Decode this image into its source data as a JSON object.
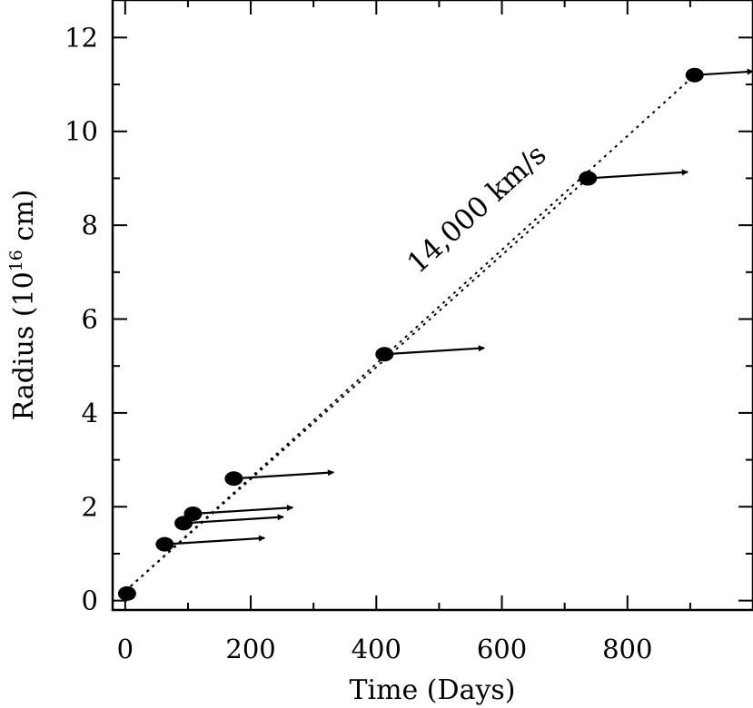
{
  "chart_data": {
    "type": "scatter",
    "title": "",
    "xlabel": "Time (Days)",
    "ylabel_base": "Radius (10",
    "ylabel_exponent": "16",
    "ylabel_unit": " cm)",
    "xlim": [
      -20,
      1000
    ],
    "ylim": [
      -0.2,
      12.8
    ],
    "xticks": [
      0,
      200,
      400,
      600,
      800
    ],
    "yticks": [
      0,
      2,
      4,
      6,
      8,
      10,
      12
    ],
    "grid": false,
    "legend": "none",
    "points": [
      {
        "x": 3,
        "y": 0.15,
        "arrow_to": null
      },
      {
        "x": 63,
        "y": 1.2,
        "arrow_to": 222
      },
      {
        "x": 93,
        "y": 1.65,
        "arrow_to": 252
      },
      {
        "x": 108,
        "y": 1.85,
        "arrow_to": 267
      },
      {
        "x": 173,
        "y": 2.6,
        "arrow_to": 332
      },
      {
        "x": 413,
        "y": 5.25,
        "arrow_to": 572
      },
      {
        "x": 737,
        "y": 9.0,
        "arrow_to": 896
      },
      {
        "x": 907,
        "y": 11.2,
        "arrow_to": 1000
      }
    ],
    "arrow_dy_per_day": 0.00084,
    "fit_lines": [
      {
        "x0": 0,
        "y0": 0.2,
        "x1": 907,
        "y1": 11.2
      },
      {
        "x0": 0,
        "y0": 0.2,
        "x1": 737,
        "y1": 9.0
      }
    ],
    "annotation": {
      "text": "14,000 km/s",
      "x": 570,
      "y": 8.2
    },
    "colors": {
      "marker": "#000000",
      "line": "#000000",
      "background": "#ffffff"
    }
  }
}
